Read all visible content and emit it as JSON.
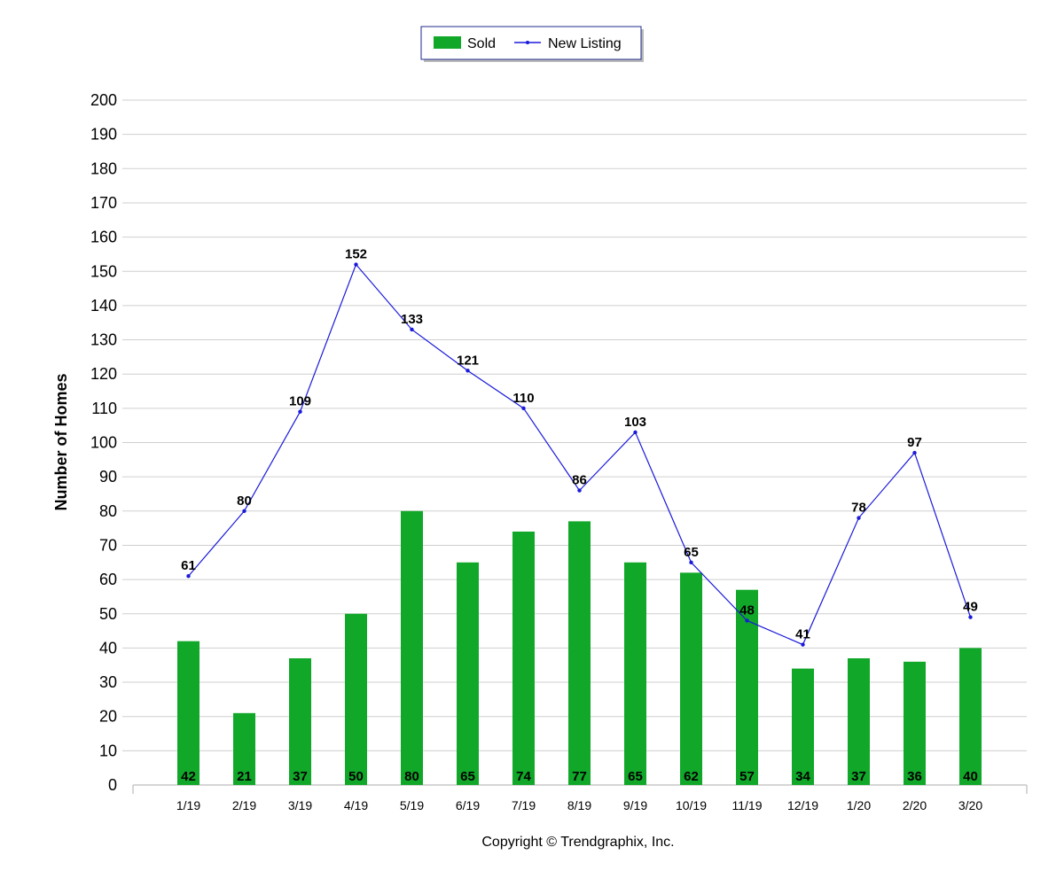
{
  "chart_data": {
    "type": "bar",
    "categories": [
      "1/19",
      "2/19",
      "3/19",
      "4/19",
      "5/19",
      "6/19",
      "7/19",
      "8/19",
      "9/19",
      "10/19",
      "11/19",
      "12/19",
      "1/20",
      "2/20",
      "3/20"
    ],
    "series": [
      {
        "name": "Sold",
        "kind": "bar",
        "color": "#11a829",
        "values": [
          42,
          21,
          37,
          50,
          80,
          65,
          74,
          77,
          65,
          62,
          57,
          34,
          37,
          36,
          40
        ]
      },
      {
        "name": "New Listing",
        "kind": "line",
        "color": "#1a1adb",
        "values": [
          61,
          80,
          109,
          152,
          133,
          121,
          110,
          86,
          103,
          65,
          48,
          41,
          78,
          97,
          49
        ]
      }
    ],
    "title": "",
    "xlabel": "",
    "ylabel": "Number of Homes",
    "ylim": [
      0,
      200
    ],
    "yticks": [
      0,
      10,
      20,
      30,
      40,
      50,
      60,
      70,
      80,
      90,
      100,
      110,
      120,
      130,
      140,
      150,
      160,
      170,
      180,
      190,
      200
    ],
    "grid": true,
    "legend_position": "top-center"
  },
  "footer": {
    "copyright": "Copyright © Trendgraphix, Inc."
  }
}
